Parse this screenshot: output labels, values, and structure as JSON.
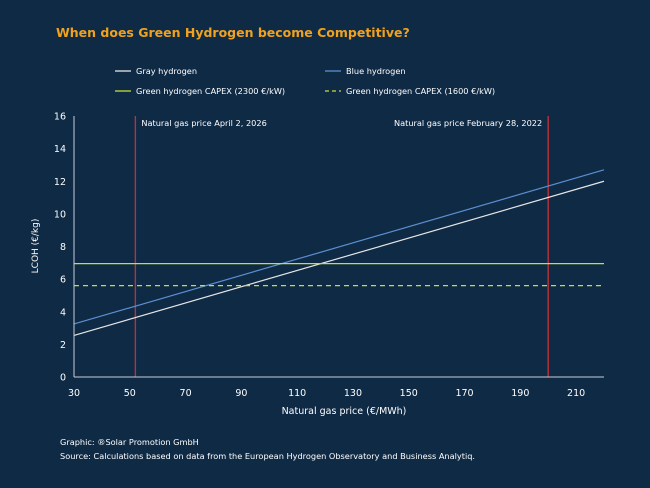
{
  "title": "When does Green Hydrogen become Competitive?",
  "footer": {
    "credit": "Graphic: ®Solar Promotion GmbH",
    "source": "Source: Calculations based on data from the European Hydrogen Observatory and Business Analytiq."
  },
  "colors": {
    "background": "#0f2a45",
    "title": "#f0a21e",
    "gray": "#e6e6e6",
    "blue": "#5b8fd0",
    "green": "#c8dc3c",
    "marker": "#b8323c",
    "axis": "#c7ced6"
  },
  "chart_data": {
    "type": "line",
    "title": "When does Green Hydrogen become Competitive?",
    "xlabel": "Natural gas price (€/MWh)",
    "ylabel": "LCOH (€/kg)",
    "xlim": [
      30,
      220
    ],
    "ylim": [
      0,
      16
    ],
    "xticks": [
      30,
      50,
      70,
      90,
      110,
      130,
      150,
      170,
      190,
      210
    ],
    "yticks": [
      0,
      2,
      4,
      6,
      8,
      10,
      12,
      14,
      16
    ],
    "grid": false,
    "legend_placement": "top",
    "series": [
      {
        "name": "Gray hydrogen",
        "style": "solid",
        "color": "#e6e6e6",
        "points": [
          [
            30,
            2.55
          ],
          [
            220,
            12.0
          ]
        ]
      },
      {
        "name": "Blue hydrogen",
        "style": "solid",
        "color": "#5b8fd0",
        "points": [
          [
            30,
            3.25
          ],
          [
            220,
            12.7
          ]
        ]
      },
      {
        "name": "Green hydrogen CAPEX (2300 €/kW)",
        "style": "solid",
        "color": "#c8dc3c",
        "points": [
          [
            30,
            6.95
          ],
          [
            220,
            6.95
          ]
        ]
      },
      {
        "name": "Green hydrogen CAPEX (1600 €/kW)",
        "style": "dashed",
        "color": "#c8dc3c",
        "points": [
          [
            30,
            5.6
          ],
          [
            220,
            5.6
          ]
        ]
      }
    ],
    "annotations": [
      {
        "label": "Natural gas price April 2, 2026",
        "x": 52,
        "text_side": "right"
      },
      {
        "label": "Natural gas price February 28, 2022",
        "x": 200,
        "text_side": "left"
      }
    ]
  }
}
